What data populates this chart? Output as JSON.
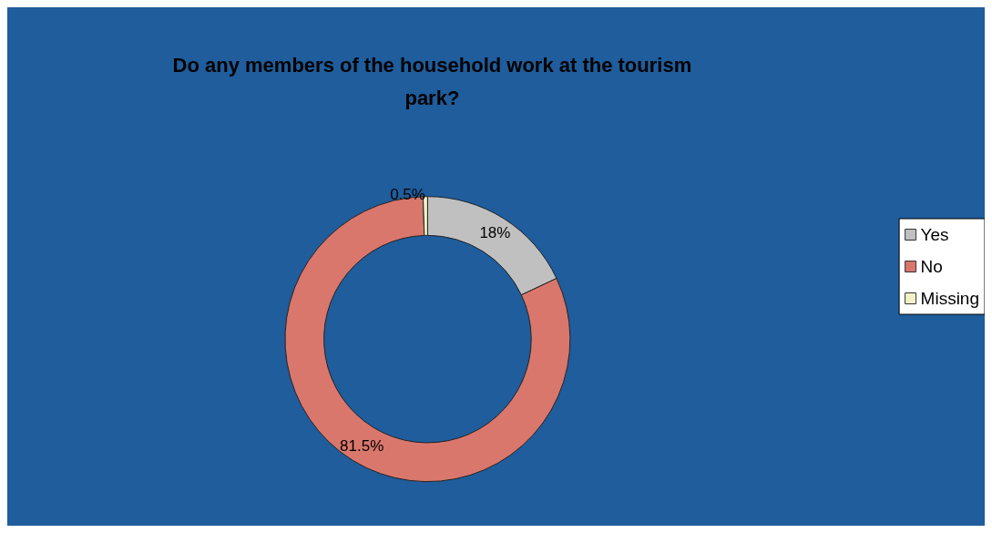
{
  "chart_data": {
    "type": "donut",
    "title": "Do any members of the household work at the tourism\npark?",
    "categories": [
      "Yes",
      "No",
      "Missing"
    ],
    "values": [
      18,
      81.5,
      0.5
    ],
    "colors": [
      "#c0c0c0",
      "#d9776d",
      "#f2f2c8"
    ],
    "value_labels": [
      "18%",
      "81.5%",
      "0.5%"
    ],
    "legend": "right"
  }
}
